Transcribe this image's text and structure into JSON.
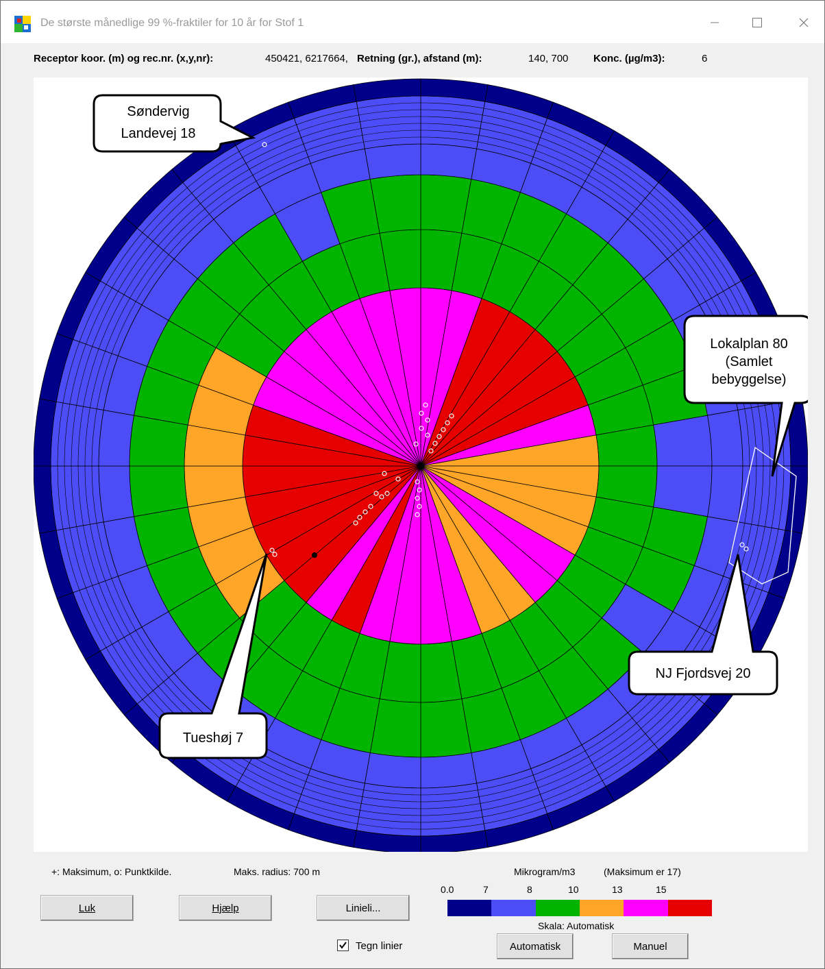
{
  "window": {
    "title": "De største månedlige 99 %-fraktiler for 10 år for Stof 1"
  },
  "info": {
    "receptor_label": "Receptor koor. (m) og rec.nr. (x,y,nr):",
    "receptor_value": "450421, 6217664,",
    "direction_label": "Retning (gr.), afstand (m):",
    "direction_value": "140, 700",
    "conc_label": "Konc. (µg/m3):",
    "conc_value": "6"
  },
  "callouts": {
    "sondervig_line1": "Søndervig",
    "sondervig_line2": "Landevej 18",
    "lokalplan_line1": "Lokalplan 80",
    "lokalplan_line2": "(Samlet",
    "lokalplan_line3": "bebyggelse)",
    "fjordsvej": "NJ Fjordsvej 20",
    "tueshoj": "Tueshøj 7"
  },
  "footer": {
    "legend_text": "+: Maksimum, o: Punktkilde.",
    "max_radius_text": "Maks. radius: 700 m",
    "unit_text": "Mikrogram/m3",
    "maximum_text": "(Maksimum er 17)",
    "scale_text": "Skala: Automatisk",
    "scale_labels": [
      "0.0",
      "7",
      "8",
      "10",
      "13",
      "15"
    ],
    "scale_colors": [
      "#00008b",
      "#4d4df7",
      "#00b400",
      "#ffa628",
      "#ff00ff",
      "#e60000"
    ],
    "checkbox_label": "Tegn linier",
    "checkbox_checked": true
  },
  "buttons": {
    "luk": "Luk",
    "hjaelp": "Hjælp",
    "linieli": "Linieli...",
    "automatisk": "Automatisk",
    "manuel": "Manuel"
  },
  "colors": {
    "darkblue": "#00008b",
    "blue": "#4d4df7",
    "green": "#00b400",
    "orange": "#ffa628",
    "magenta": "#ff00ff",
    "red": "#e60000"
  }
}
